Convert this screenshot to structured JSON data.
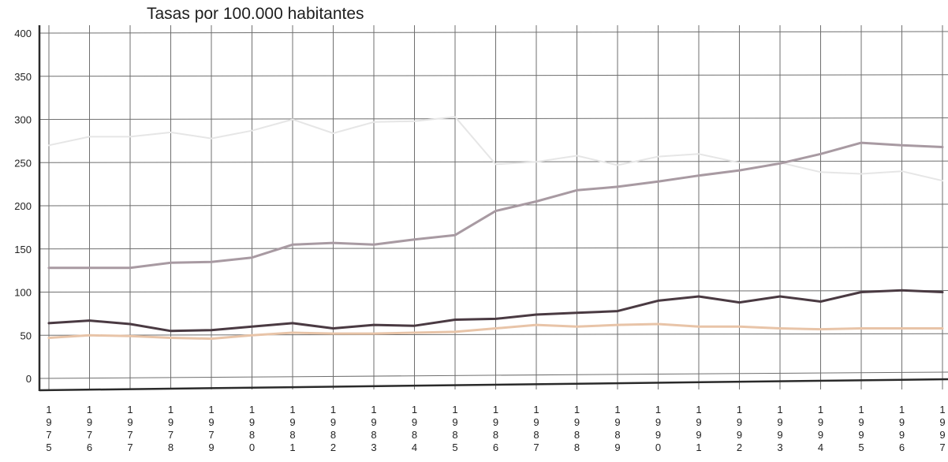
{
  "chart_data": {
    "type": "line",
    "title": "Tasas por 100.000 habitantes",
    "xlabel": "",
    "ylabel": "",
    "ylim": [
      0,
      400
    ],
    "yticks": [
      "0",
      "50",
      "100",
      "150",
      "200",
      "250",
      "300",
      "350",
      "400"
    ],
    "grid": true,
    "legend": "none",
    "x": [
      "1975",
      "1976",
      "1977",
      "1978",
      "1979",
      "1980",
      "1981",
      "1982",
      "1983",
      "1984",
      "1985",
      "1986",
      "1987",
      "1988",
      "1989",
      "1990",
      "1991",
      "1992",
      "1993",
      "1994",
      "1995",
      "1996",
      "1997"
    ],
    "series": [
      {
        "color": "#e6e6e6",
        "values": [
          270,
          280,
          280,
          285,
          278,
          287,
          300,
          284,
          297,
          298,
          303,
          248,
          251,
          258,
          247,
          257,
          260,
          250,
          250,
          239,
          237,
          240,
          229
        ]
      },
      {
        "color": "#a89aa2",
        "values": [
          128,
          128,
          128,
          134,
          135,
          140,
          155,
          157,
          155,
          161,
          166,
          194,
          205,
          218,
          222,
          228,
          235,
          241,
          249,
          260,
          273,
          270,
          268
        ]
      },
      {
        "color": "#4a3a42",
        "values": [
          64,
          67,
          63,
          55,
          56,
          60,
          64,
          58,
          62,
          61,
          68,
          69,
          74,
          76,
          78,
          90,
          95,
          88,
          95,
          89,
          100,
          102,
          100
        ]
      },
      {
        "color": "#e8c4a8",
        "values": [
          47,
          50,
          49,
          47,
          46,
          50,
          53,
          52,
          52,
          53,
          54,
          58,
          62,
          60,
          62,
          63,
          60,
          60,
          58,
          57,
          58,
          58,
          58
        ]
      }
    ]
  }
}
